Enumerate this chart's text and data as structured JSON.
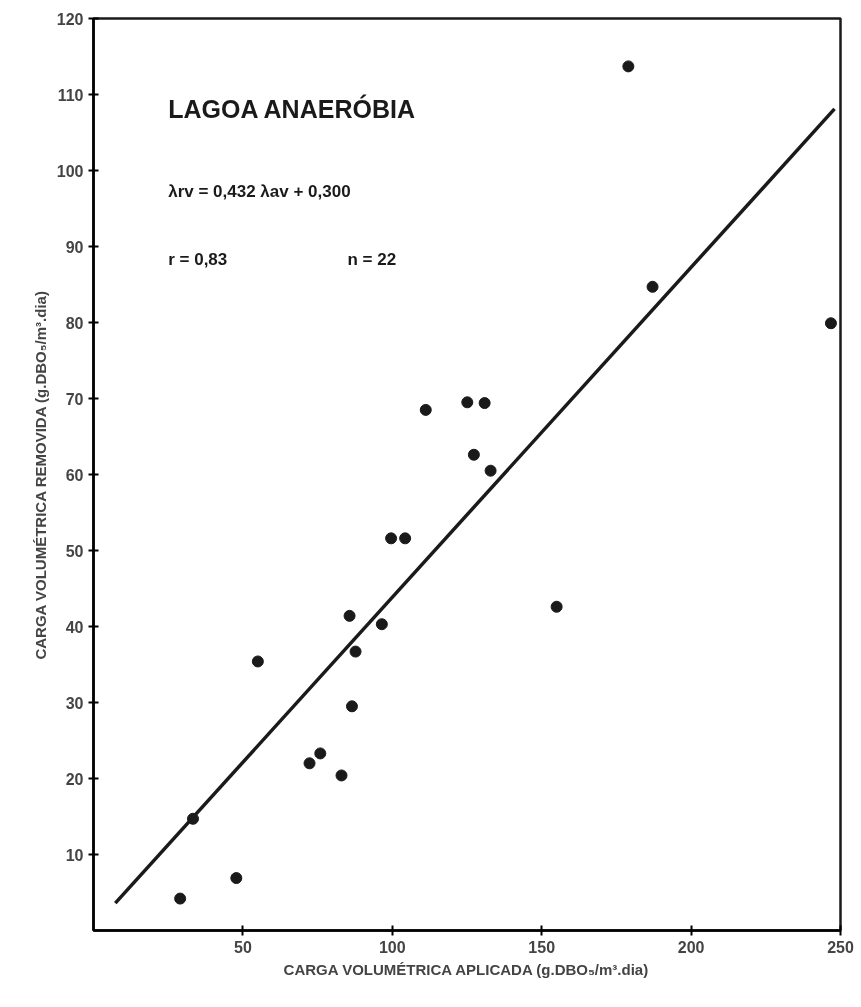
{
  "chart_data": {
    "type": "scatter",
    "title": "LAGOA ANAERÓBIA",
    "xlabel": "CARGA VOLUMÉTRICA APLICADA (g.DBO₅/m³.dia)",
    "ylabel": "CARGA VOLUMÉTRICA REMOVIDA (g.DBO₅/m³.dia)",
    "annotations": [
      "λrv = 0,432 λav + 0,300",
      "r = 0,83",
      "n = 22"
    ],
    "xlim": [
      0,
      250
    ],
    "ylim": [
      0,
      120
    ],
    "xticks": [
      50,
      100,
      150,
      200,
      250
    ],
    "yticks": [
      10,
      20,
      30,
      40,
      50,
      60,
      70,
      80,
      90,
      100,
      110,
      120
    ],
    "grid": false,
    "marker": "circle",
    "line_style": "solid",
    "series": [
      {
        "color": "#1a1a1a",
        "x": [
          29,
          33.3,
          47.8,
          55,
          72.3,
          75.9,
          83,
          85.7,
          87.7,
          86.5,
          96.5,
          99.6,
          104.3,
          111.2,
          125.1,
          130.9,
          127.3,
          132.9,
          179,
          187.1,
          246.8,
          155
        ],
        "values": [
          4.2,
          14.7,
          6.9,
          35.4,
          22,
          23.3,
          20.4,
          41.4,
          36.7,
          29.5,
          40.3,
          51.6,
          51.6,
          68.5,
          69.5,
          69.4,
          62.6,
          60.5,
          113.7,
          84.7,
          79.9,
          42.6
        ]
      },
      {
        "type": "line",
        "marker": "none",
        "color": "#1a1a1a",
        "x": [
          7.3,
          248
        ],
        "values": [
          3.6,
          108.1
        ]
      }
    ]
  }
}
